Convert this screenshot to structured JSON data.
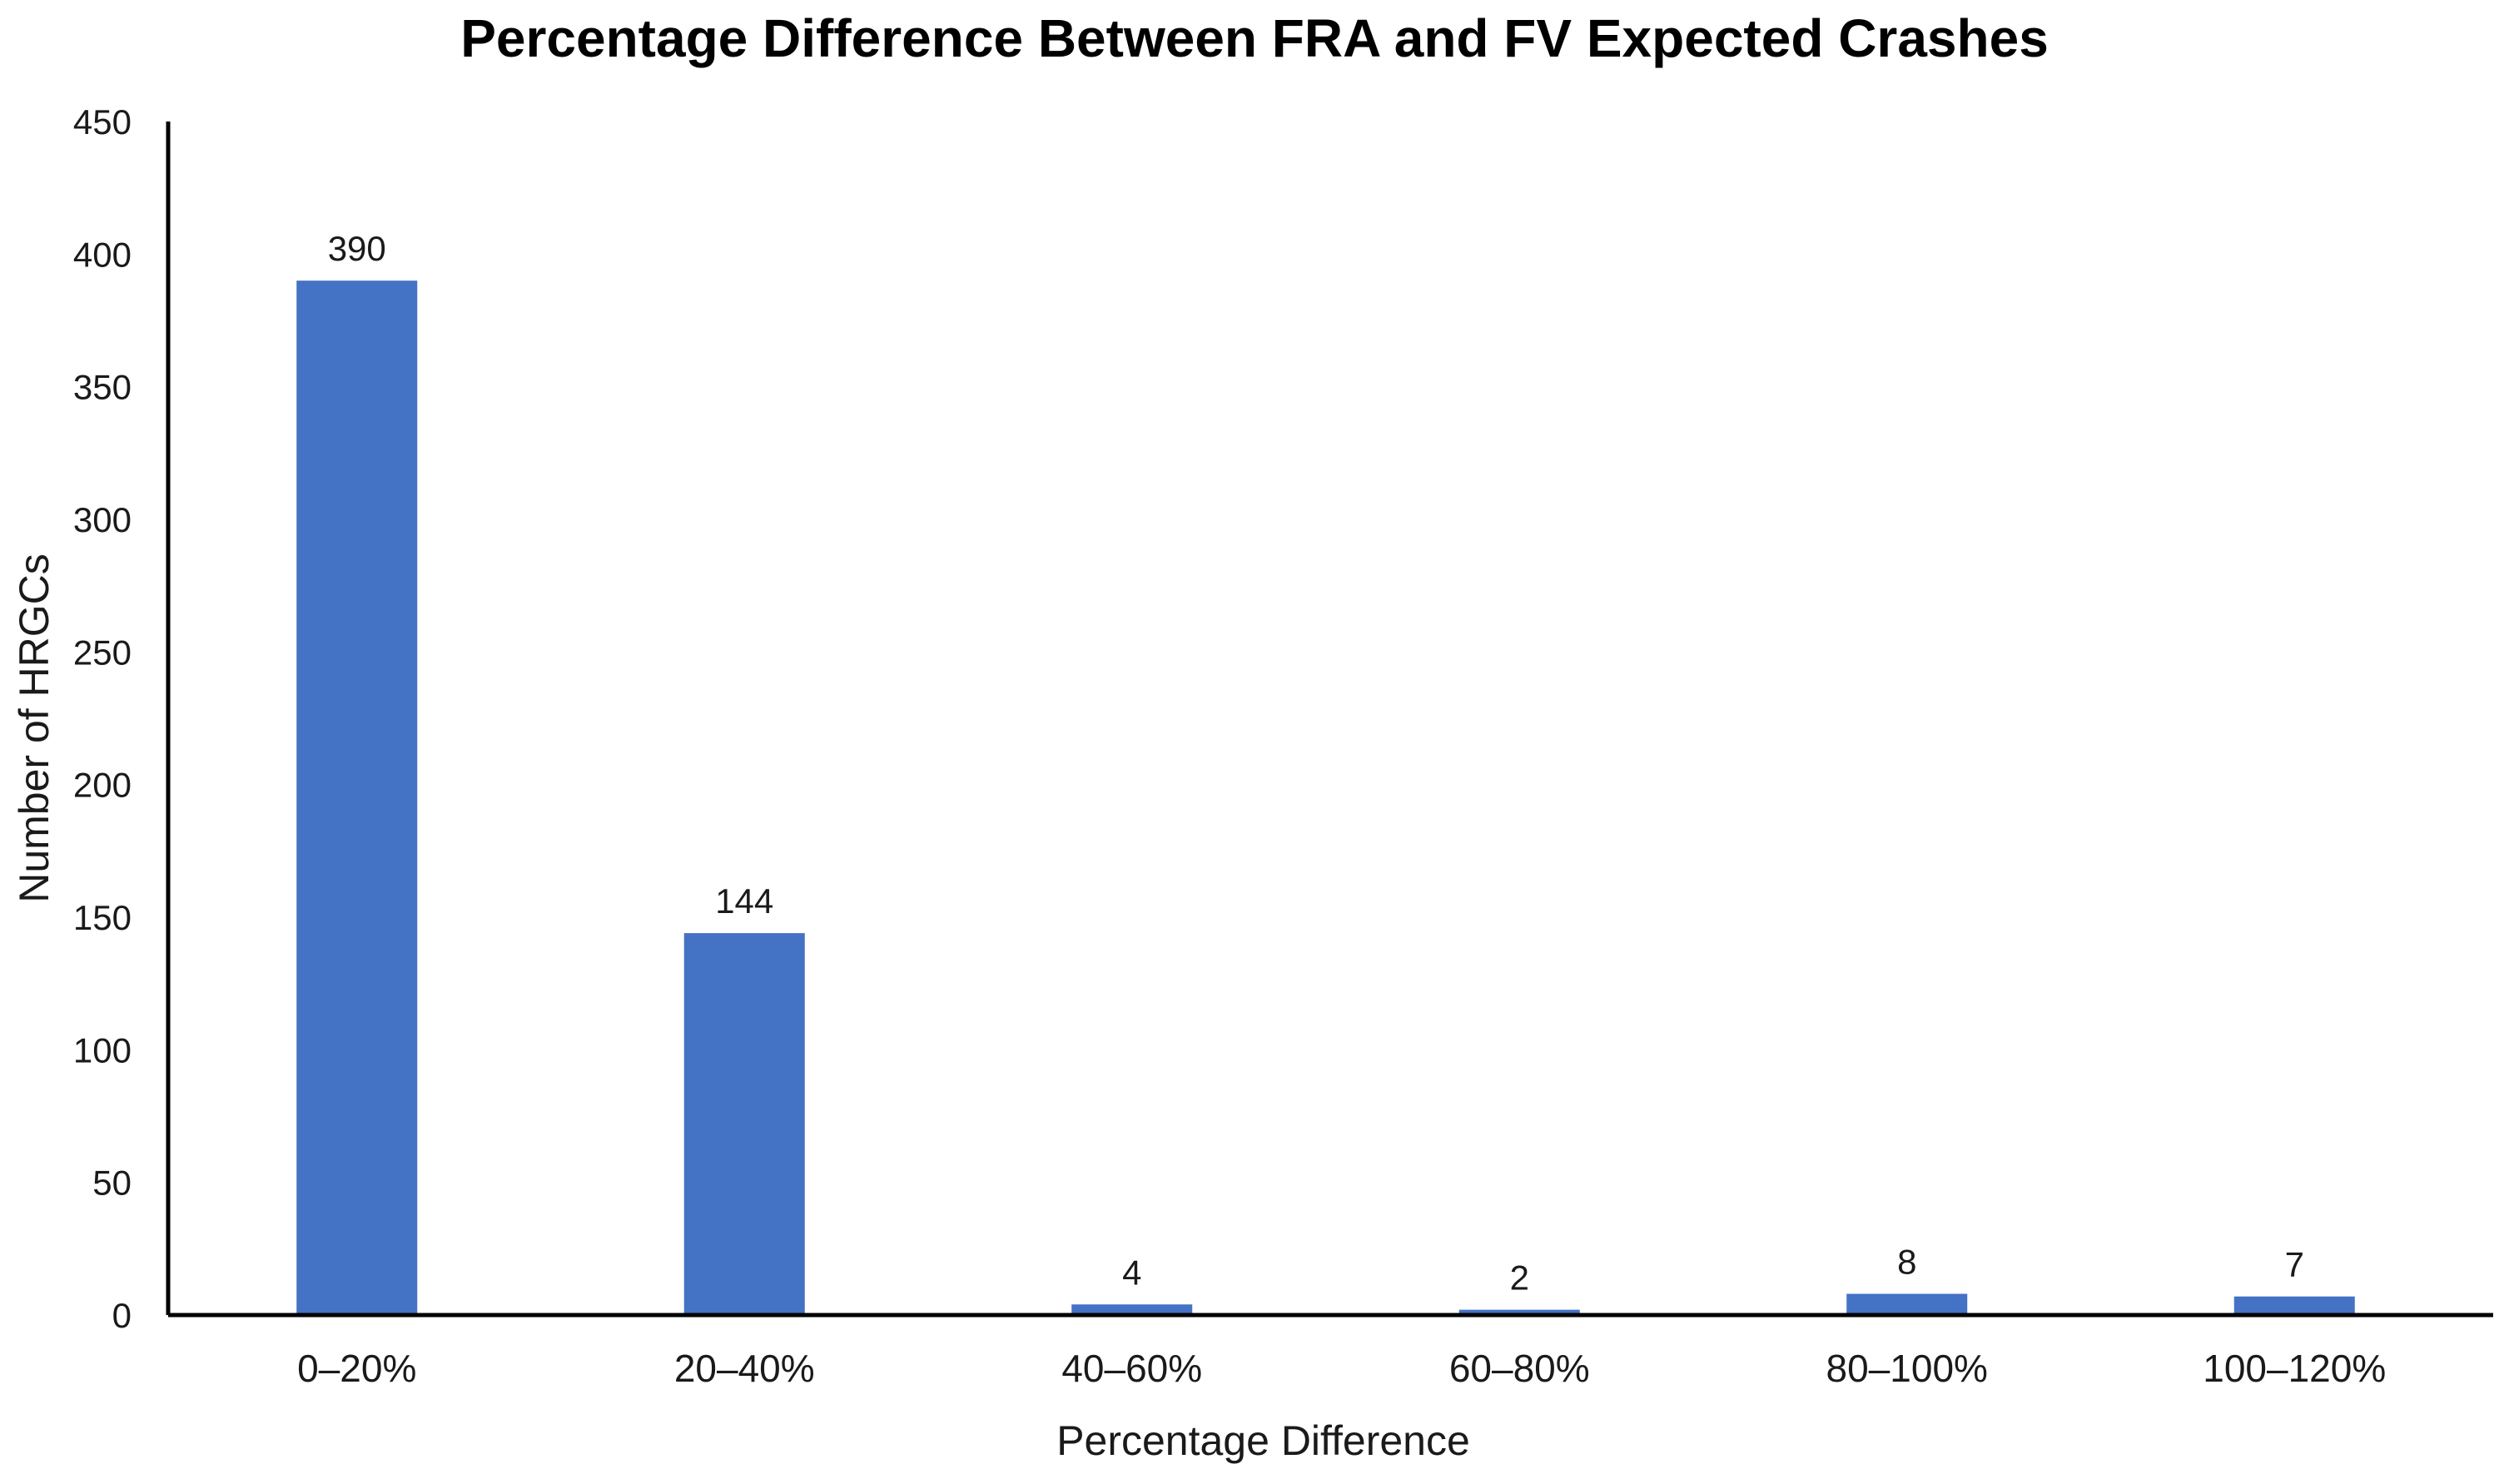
{
  "chart_data": {
    "type": "bar",
    "title": "Percentage Difference Between FRA and FV Expected Crashes",
    "xlabel": "Percentage Difference",
    "ylabel": "Number of HRGCs",
    "categories": [
      "0–20%",
      "20–40%",
      "40–60%",
      "60–80%",
      "80–100%",
      "100–120%"
    ],
    "values": [
      390,
      144,
      4,
      2,
      8,
      7
    ],
    "data_labels": [
      "390",
      "144",
      "4",
      "2",
      "8",
      "7"
    ],
    "ylim": [
      0,
      450
    ],
    "yticks": [
      0,
      50,
      100,
      150,
      200,
      250,
      300,
      350,
      400,
      450
    ],
    "grid": false,
    "legend": "none",
    "bar_color": "#4472C4",
    "axis_color": "#000000"
  }
}
